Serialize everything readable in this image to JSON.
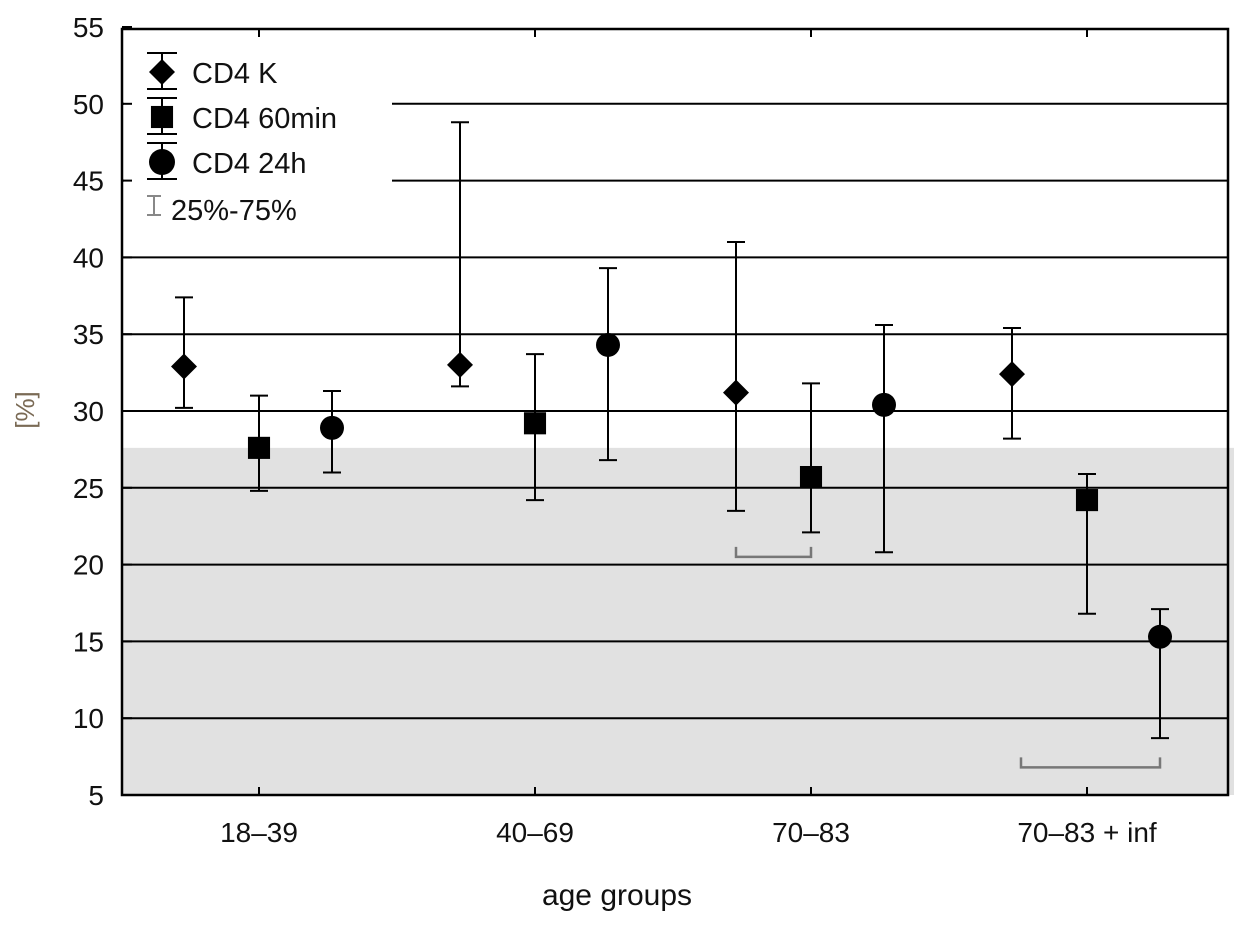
{
  "chart_data": {
    "type": "scatter",
    "subtype": "median-with-iqr-errorbars",
    "xlabel": "age groups",
    "ylabel": "[%]",
    "ylim": [
      5,
      55
    ],
    "yticks": [
      5,
      10,
      15,
      20,
      25,
      30,
      35,
      40,
      45,
      50,
      55
    ],
    "grid": true,
    "legend_position": "top-left",
    "categories": [
      "18–39",
      "40–69",
      "70–83",
      "70–83 + inf"
    ],
    "series": [
      {
        "name": "CD4 K",
        "marker": "diamond",
        "values": [
          32.9,
          33.0,
          31.2,
          32.4
        ],
        "q25": [
          30.2,
          31.6,
          23.5,
          28.2
        ],
        "q75": [
          37.4,
          48.8,
          41.0,
          35.4
        ]
      },
      {
        "name": "CD4 60min",
        "marker": "square",
        "values": [
          27.6,
          29.2,
          25.7,
          24.2
        ],
        "q25": [
          24.8,
          24.2,
          22.1,
          16.8
        ],
        "q75": [
          31.0,
          33.7,
          31.8,
          25.9
        ]
      },
      {
        "name": "CD4 24h",
        "marker": "circle",
        "values": [
          28.9,
          34.3,
          30.4,
          15.3
        ],
        "q25": [
          26.0,
          26.8,
          20.8,
          8.7
        ],
        "q75": [
          31.3,
          39.3,
          35.6,
          17.1
        ]
      }
    ],
    "legend_range_label": "25%-75%",
    "shaded_band": {
      "from": 5,
      "to": 27.6,
      "color": "#e1e1e1"
    },
    "significance_brackets": [
      {
        "category": "70–83",
        "from_series": "CD4 K",
        "to_series": "CD4 60min",
        "y": 20.5
      },
      {
        "category": "70–83 + inf",
        "from_series": "CD4 K",
        "to_series": "CD4 24h",
        "y": 6.8
      }
    ]
  }
}
